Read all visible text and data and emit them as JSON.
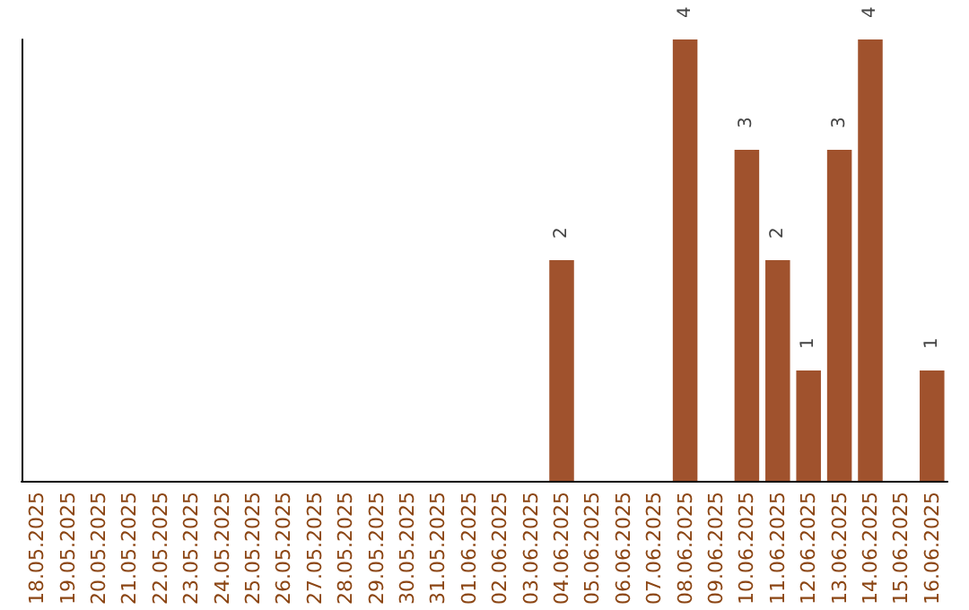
{
  "chart_data": {
    "type": "bar",
    "categories": [
      "18.05.2025",
      "19.05.2025",
      "20.05.2025",
      "21.05.2025",
      "22.05.2025",
      "23.05.2025",
      "24.05.2025",
      "25.05.2025",
      "26.05.2025",
      "27.05.2025",
      "28.05.2025",
      "29.05.2025",
      "30.05.2025",
      "31.05.2025",
      "01.06.2025",
      "02.06.2025",
      "03.06.2025",
      "04.06.2025",
      "05.06.2025",
      "06.06.2025",
      "07.06.2025",
      "08.06.2025",
      "09.06.2025",
      "10.06.2025",
      "11.06.2025",
      "12.06.2025",
      "13.06.2025",
      "14.06.2025",
      "15.06.2025",
      "16.06.2025"
    ],
    "values": [
      null,
      null,
      null,
      null,
      null,
      null,
      null,
      null,
      null,
      null,
      null,
      null,
      null,
      null,
      null,
      null,
      null,
      2,
      null,
      null,
      null,
      4,
      null,
      3,
      2,
      1,
      3,
      4,
      null,
      1
    ],
    "value_labels": [
      null,
      null,
      null,
      null,
      null,
      null,
      null,
      null,
      null,
      null,
      null,
      null,
      null,
      null,
      null,
      null,
      null,
      "2",
      null,
      null,
      null,
      "4",
      null,
      "3",
      "2",
      "1",
      "3",
      "4",
      null,
      "1"
    ],
    "color": "#a0522d",
    "grid": false
  }
}
